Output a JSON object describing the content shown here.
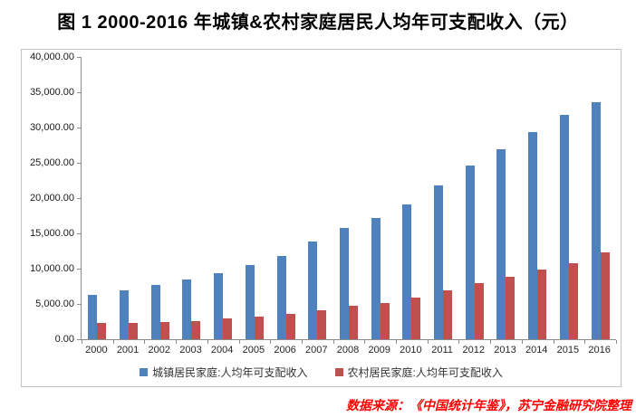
{
  "figure": {
    "title": "图 1 2000-2016 年城镇&农村家庭居民人均年可支配收入（元）"
  },
  "footer": {
    "source_note": "数据来源：《中国统计年鉴》，苏宁金融研究院整理"
  },
  "colors": {
    "urban_series": "#4F81BD",
    "rural_series": "#C0504D",
    "axis_line": "#8C8C8C",
    "chart_border": "#C3C3C3",
    "source_note_text": "#FF0000"
  },
  "chart_data": {
    "type": "bar",
    "title": "图 1 2000-2016 年城镇&农村家庭居民人均年可支配收入（元）",
    "unit": "元",
    "categories": [
      "2000",
      "2001",
      "2002",
      "2003",
      "2004",
      "2005",
      "2006",
      "2007",
      "2008",
      "2009",
      "2010",
      "2011",
      "2012",
      "2013",
      "2014",
      "2015",
      "2016"
    ],
    "series": [
      {
        "id": "urban",
        "name": "城镇居民家庭:人均年可支配收入",
        "color": "#4F81BD",
        "values": [
          6280.0,
          6859.6,
          7702.8,
          8472.2,
          9421.6,
          10493.0,
          11759.5,
          13785.8,
          15780.8,
          17174.7,
          19109.4,
          21809.8,
          24564.7,
          26955.1,
          29381.0,
          31790.3,
          33616.2
        ]
      },
      {
        "id": "rural",
        "name": "农村居民家庭:人均年可支配收入",
        "color": "#C0504D",
        "values": [
          2253.4,
          2366.4,
          2475.6,
          2622.2,
          2936.4,
          3254.9,
          3587.0,
          4140.4,
          4760.6,
          5153.2,
          5919.0,
          6977.3,
          7916.6,
          8895.9,
          9892.0,
          10772.0,
          12363.4
        ]
      }
    ],
    "ylim": [
      0,
      40000
    ],
    "y_tick_step": 5000,
    "y_tick_labels": [
      "40,000.00",
      "35,000.00",
      "30,000.00",
      "25,000.00",
      "20,000.00",
      "15,000.00",
      "10,000.00",
      "5,000.00",
      "0.00"
    ],
    "grid": false,
    "legend_position": "bottom"
  }
}
